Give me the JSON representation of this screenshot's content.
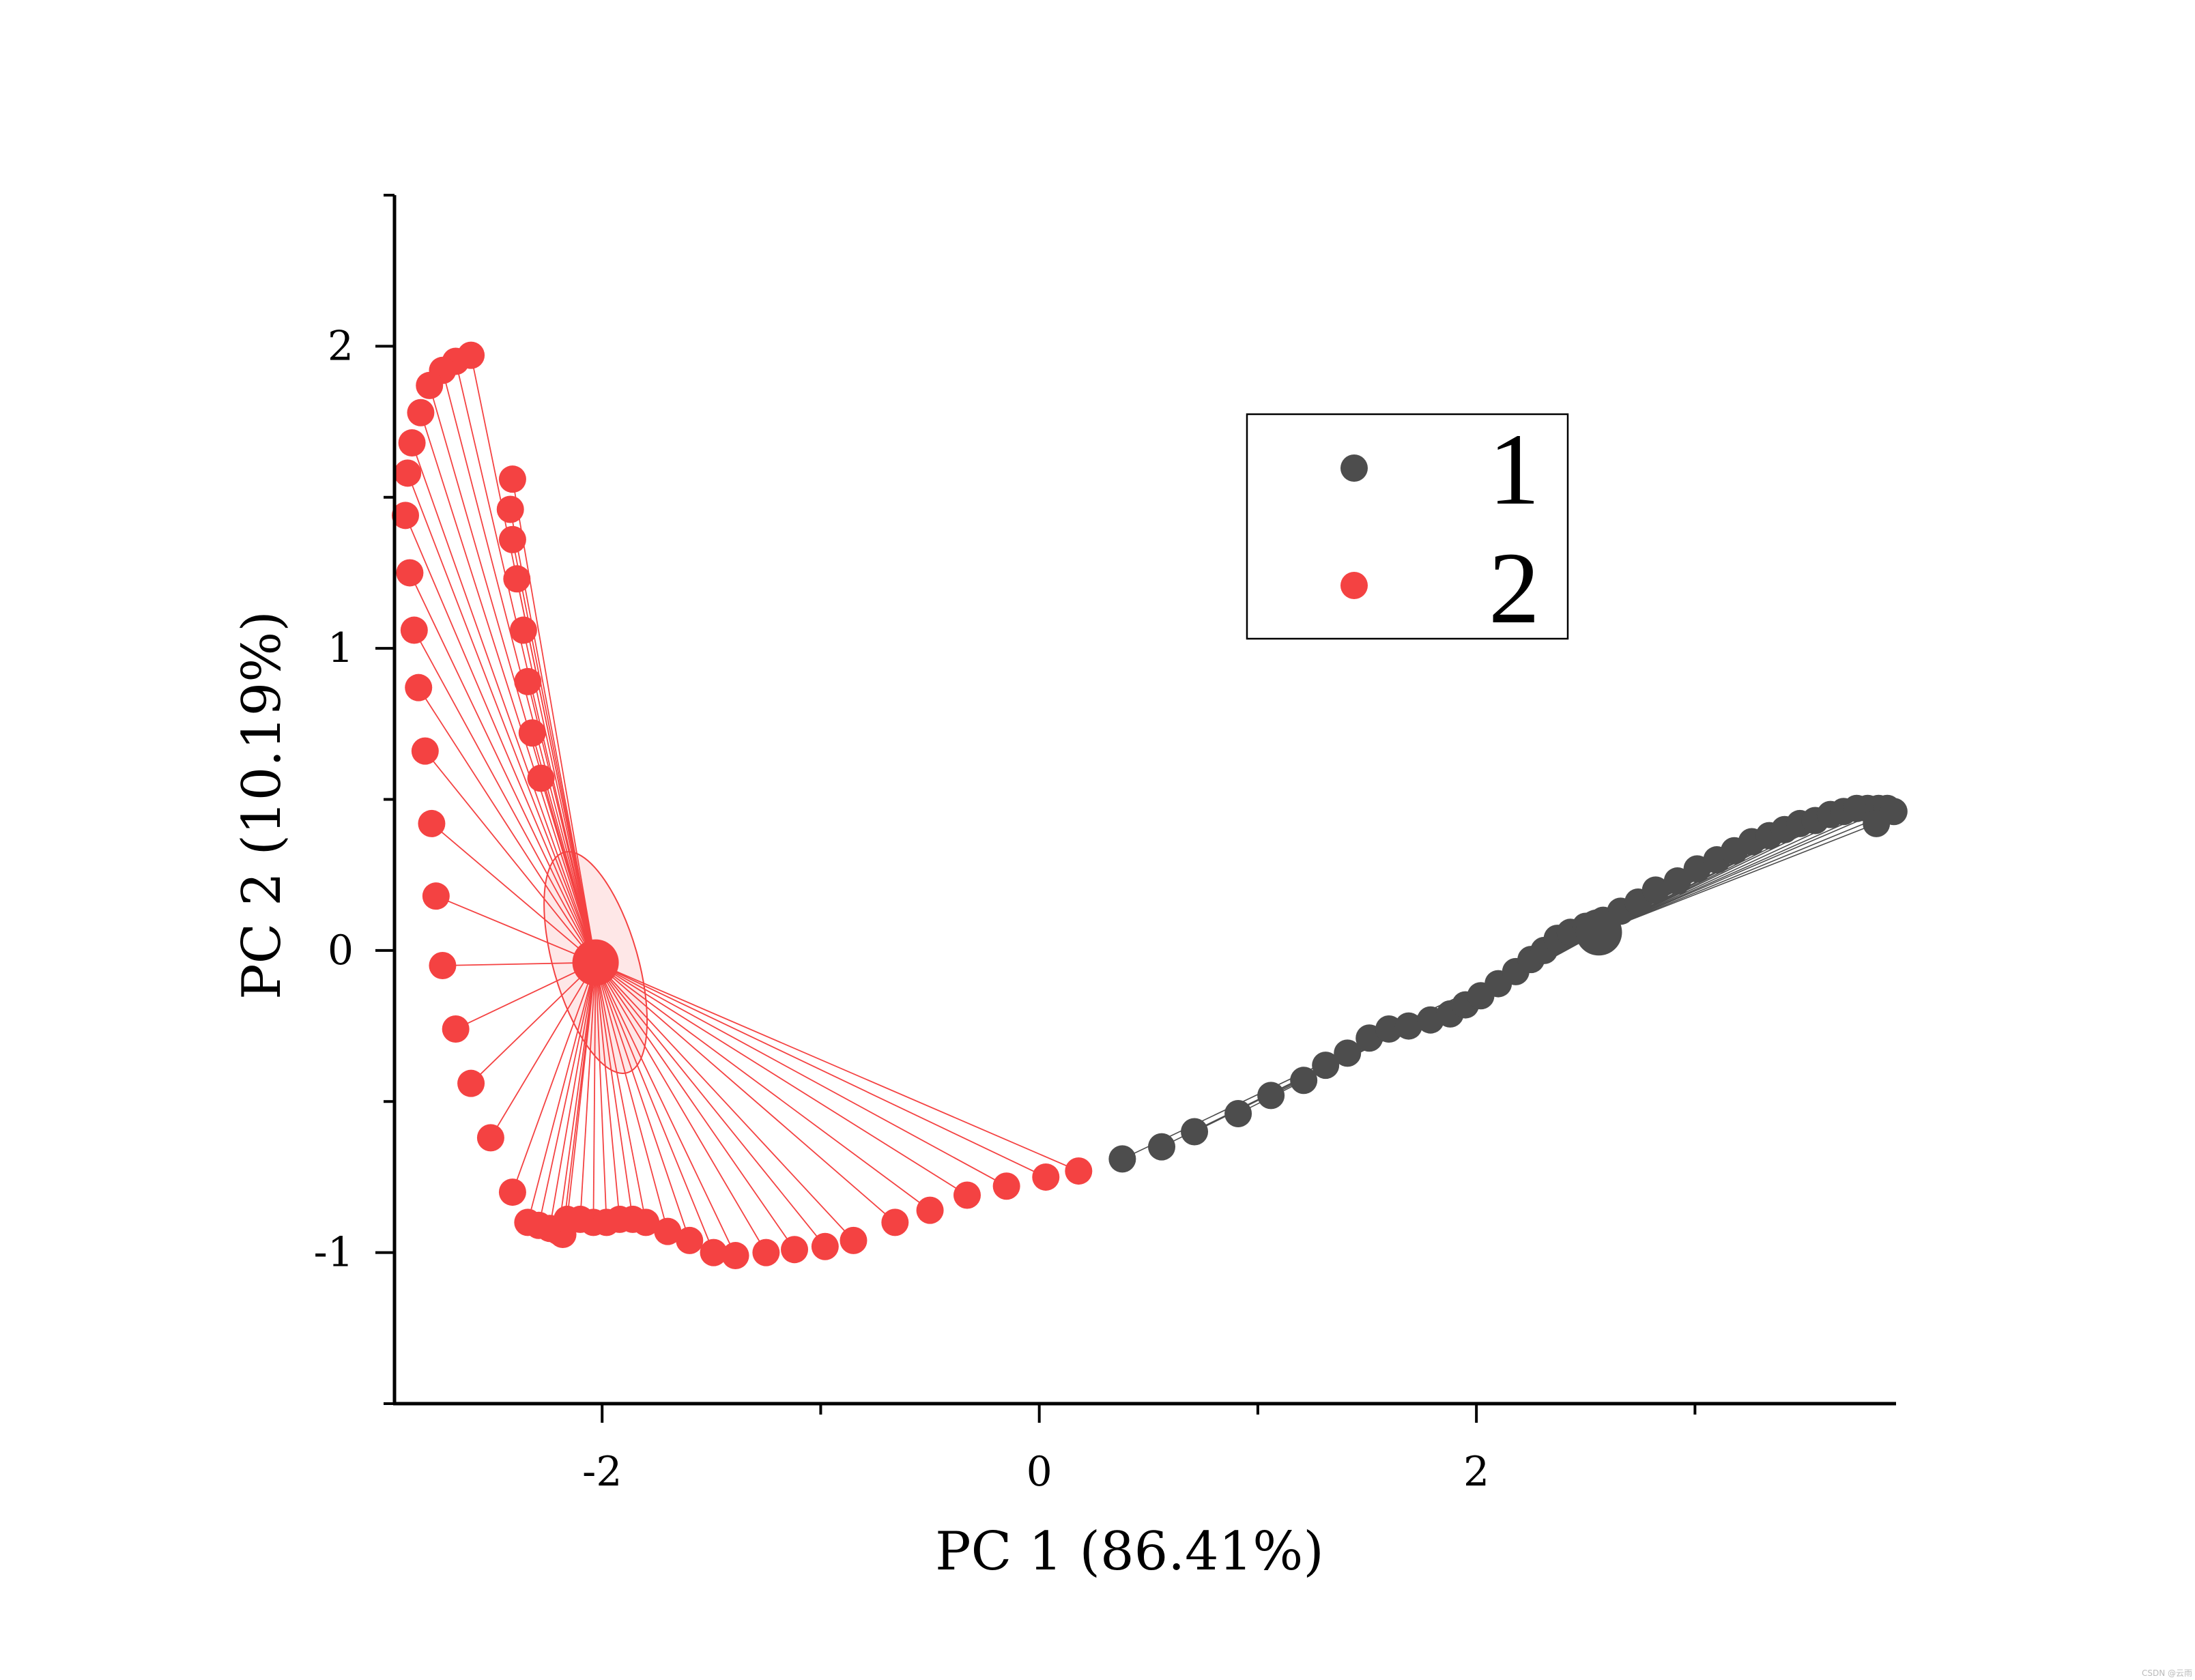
{
  "chart_data": {
    "type": "scatter",
    "title": "",
    "xlabel": "PC 1 (86.41%)",
    "ylabel": "PC 2 (10.19%)",
    "xlim": [
      -2.95,
      3.92
    ],
    "ylim": [
      -1.5,
      2.5
    ],
    "xticks": [
      -2,
      0,
      2
    ],
    "yticks": [
      -1,
      0,
      1,
      2
    ],
    "xtick_labels": [
      "-2",
      "0",
      "2"
    ],
    "ytick_labels": [
      "-1",
      "0",
      "1",
      "2"
    ],
    "grid": false,
    "legend_position": "upper-right",
    "watermark": "CSDN @云雨",
    "series": [
      {
        "name": "1",
        "color": "#4d4d4d",
        "centroid": [
          2.56,
          0.06
        ],
        "points": [
          [
            0.38,
            -0.69
          ],
          [
            0.56,
            -0.65
          ],
          [
            0.71,
            -0.6
          ],
          [
            0.91,
            -0.54
          ],
          [
            1.06,
            -0.48
          ],
          [
            1.21,
            -0.43
          ],
          [
            1.31,
            -0.38
          ],
          [
            1.41,
            -0.34
          ],
          [
            1.51,
            -0.29
          ],
          [
            1.6,
            -0.26
          ],
          [
            1.69,
            -0.25
          ],
          [
            1.79,
            -0.23
          ],
          [
            1.88,
            -0.21
          ],
          [
            1.95,
            -0.18
          ],
          [
            2.02,
            -0.15
          ],
          [
            2.1,
            -0.11
          ],
          [
            2.18,
            -0.07
          ],
          [
            2.25,
            -0.03
          ],
          [
            2.31,
            0.0
          ],
          [
            2.37,
            0.04
          ],
          [
            2.43,
            0.06
          ],
          [
            2.5,
            0.08
          ],
          [
            2.58,
            0.1
          ],
          [
            2.66,
            0.13
          ],
          [
            2.74,
            0.16
          ],
          [
            2.82,
            0.2
          ],
          [
            2.92,
            0.23
          ],
          [
            3.01,
            0.27
          ],
          [
            3.1,
            0.3
          ],
          [
            3.18,
            0.33
          ],
          [
            3.26,
            0.36
          ],
          [
            3.34,
            0.38
          ],
          [
            3.41,
            0.4
          ],
          [
            3.48,
            0.42
          ],
          [
            3.55,
            0.43
          ],
          [
            3.62,
            0.45
          ],
          [
            3.68,
            0.46
          ],
          [
            3.74,
            0.47
          ],
          [
            3.79,
            0.47
          ],
          [
            3.84,
            0.47
          ],
          [
            3.88,
            0.47
          ],
          [
            3.91,
            0.46
          ],
          [
            3.83,
            0.42
          ]
        ]
      },
      {
        "name": "2",
        "color": "#f44242",
        "centroid": [
          -2.03,
          -0.04
        ],
        "points": [
          [
            -2.6,
            1.97
          ],
          [
            -2.67,
            1.95
          ],
          [
            -2.73,
            1.92
          ],
          [
            -2.79,
            1.87
          ],
          [
            -2.83,
            1.78
          ],
          [
            -2.87,
            1.68
          ],
          [
            -2.89,
            1.58
          ],
          [
            -2.9,
            1.44
          ],
          [
            -2.88,
            1.25
          ],
          [
            -2.86,
            1.06
          ],
          [
            -2.84,
            0.87
          ],
          [
            -2.81,
            0.66
          ],
          [
            -2.78,
            0.42
          ],
          [
            -2.76,
            0.18
          ],
          [
            -2.73,
            -0.05
          ],
          [
            -2.67,
            -0.26
          ],
          [
            -2.6,
            -0.44
          ],
          [
            -2.51,
            -0.62
          ],
          [
            -2.41,
            -0.8
          ],
          [
            -2.34,
            -0.9
          ],
          [
            -2.29,
            -0.91
          ],
          [
            -2.24,
            -0.92
          ],
          [
            -2.2,
            -0.93
          ],
          [
            -2.18,
            -0.94
          ],
          [
            -2.16,
            -0.89
          ],
          [
            -2.1,
            -0.89
          ],
          [
            -2.04,
            -0.9
          ],
          [
            -1.98,
            -0.9
          ],
          [
            -1.92,
            -0.89
          ],
          [
            -1.86,
            -0.89
          ],
          [
            -1.8,
            -0.9
          ],
          [
            -1.7,
            -0.93
          ],
          [
            -1.6,
            -0.96
          ],
          [
            -1.49,
            -1.0
          ],
          [
            -1.39,
            -1.01
          ],
          [
            -1.25,
            -1.0
          ],
          [
            -1.12,
            -0.99
          ],
          [
            -0.98,
            -0.98
          ],
          [
            -0.85,
            -0.96
          ],
          [
            -0.66,
            -0.9
          ],
          [
            -0.5,
            -0.86
          ],
          [
            -0.33,
            -0.81
          ],
          [
            -0.15,
            -0.78
          ],
          [
            0.03,
            -0.75
          ],
          [
            0.18,
            -0.73
          ],
          [
            -2.41,
            1.56
          ],
          [
            -2.42,
            1.46
          ],
          [
            -2.41,
            1.36
          ],
          [
            -2.39,
            1.23
          ],
          [
            -2.36,
            1.06
          ],
          [
            -2.34,
            0.89
          ],
          [
            -2.32,
            0.72
          ],
          [
            -2.28,
            0.57
          ]
        ]
      }
    ]
  }
}
